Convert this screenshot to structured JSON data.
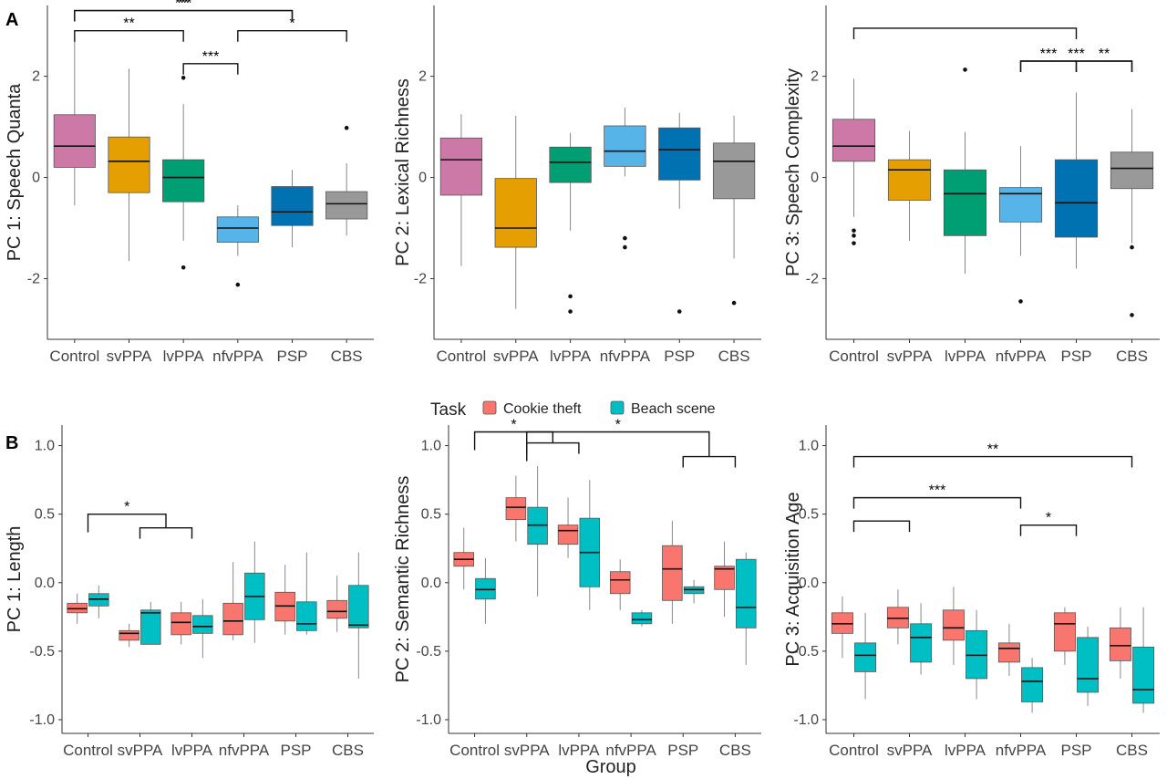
{
  "panel_labels": [
    "A",
    "B"
  ],
  "x_axis_title": "Group",
  "legend": {
    "title": "Task",
    "items": [
      {
        "label": "Cookie theft",
        "color": "#F8766D"
      },
      {
        "label": "Beach scene",
        "color": "#00BFC4"
      }
    ]
  },
  "chart_data": [
    {
      "type": "box",
      "ylabel": "PC 1: Speech Quanta",
      "categories": [
        "Control",
        "svPPA",
        "lvPPA",
        "nfvPPA",
        "PSP",
        "CBS"
      ],
      "ylim": [
        -3.2,
        3.4
      ],
      "yticks": [
        -2,
        0,
        2
      ],
      "colors": [
        "#CC79A7",
        "#E69F00",
        "#009E73",
        "#56B4E9",
        "#0072B2",
        "#999999"
      ],
      "boxes": [
        {
          "q1": 0.2,
          "median": 0.62,
          "q3": 1.24,
          "wlo": -0.55,
          "whi": 2.7,
          "outliers": []
        },
        {
          "q1": -0.3,
          "median": 0.32,
          "q3": 0.8,
          "wlo": -1.65,
          "whi": 2.15,
          "outliers": []
        },
        {
          "q1": -0.48,
          "median": 0.0,
          "q3": 0.35,
          "wlo": -1.25,
          "whi": 1.45,
          "outliers": [
            1.97,
            -1.78
          ]
        },
        {
          "q1": -1.28,
          "median": -1.0,
          "q3": -0.78,
          "wlo": -1.55,
          "whi": -0.55,
          "outliers": [
            -2.12
          ]
        },
        {
          "q1": -0.95,
          "median": -0.68,
          "q3": -0.18,
          "wlo": -1.38,
          "whi": 0.15,
          "outliers": []
        },
        {
          "q1": -0.82,
          "median": -0.52,
          "q3": -0.28,
          "wlo": -1.15,
          "whi": 0.28,
          "outliers": [
            0.98
          ]
        }
      ],
      "brackets": [
        {
          "from": 0,
          "to": 2,
          "y": 2.9,
          "label": "**"
        },
        {
          "from": 2,
          "to": 3,
          "y": 2.25,
          "label": "***"
        },
        {
          "from": 3,
          "to": 5,
          "y": 2.9,
          "label": "*"
        },
        {
          "from": 0,
          "to": 4,
          "y": 3.3,
          "label": "***",
          "mid_drop": 3.05
        },
        {
          "from": 0,
          "to": 4,
          "y": 3.3,
          "label": "**"
        }
      ]
    },
    {
      "type": "box",
      "ylabel": "PC 2: Lexical Richness",
      "categories": [
        "Control",
        "svPPA",
        "lvPPA",
        "nfvPPA",
        "PSP",
        "CBS"
      ],
      "ylim": [
        -3.2,
        3.4
      ],
      "yticks": [
        -2,
        0,
        2
      ],
      "colors": [
        "#CC79A7",
        "#E69F00",
        "#009E73",
        "#56B4E9",
        "#0072B2",
        "#999999"
      ],
      "boxes": [
        {
          "q1": -0.35,
          "median": 0.35,
          "q3": 0.78,
          "wlo": -1.75,
          "whi": 1.25,
          "outliers": []
        },
        {
          "q1": -1.38,
          "median": -1.0,
          "q3": -0.02,
          "wlo": -2.6,
          "whi": 1.22,
          "outliers": []
        },
        {
          "q1": -0.1,
          "median": 0.3,
          "q3": 0.6,
          "wlo": -1.05,
          "whi": 0.88,
          "outliers": [
            -2.35,
            -2.65
          ]
        },
        {
          "q1": 0.22,
          "median": 0.52,
          "q3": 1.02,
          "wlo": 0.02,
          "whi": 1.38,
          "outliers": [
            -1.2,
            -1.38
          ]
        },
        {
          "q1": -0.05,
          "median": 0.55,
          "q3": 0.98,
          "wlo": -0.62,
          "whi": 1.28,
          "outliers": [
            -2.65
          ]
        },
        {
          "q1": -0.42,
          "median": 0.32,
          "q3": 0.68,
          "wlo": -1.6,
          "whi": 1.22,
          "outliers": [
            -2.48
          ]
        }
      ],
      "brackets": []
    },
    {
      "type": "box",
      "ylabel": "PC 3: Speech Complexity",
      "categories": [
        "Control",
        "svPPA",
        "lvPPA",
        "nfvPPA",
        "PSP",
        "CBS"
      ],
      "ylim": [
        -3.2,
        3.4
      ],
      "yticks": [
        -2,
        0,
        2
      ],
      "colors": [
        "#CC79A7",
        "#E69F00",
        "#009E73",
        "#56B4E9",
        "#0072B2",
        "#999999"
      ],
      "boxes": [
        {
          "q1": 0.32,
          "median": 0.62,
          "q3": 1.15,
          "wlo": -0.78,
          "whi": 1.95,
          "outliers": [
            -1.05,
            -1.15,
            -1.3
          ]
        },
        {
          "q1": -0.45,
          "median": 0.15,
          "q3": 0.35,
          "wlo": -1.25,
          "whi": 0.92,
          "outliers": []
        },
        {
          "q1": -1.15,
          "median": -0.32,
          "q3": 0.15,
          "wlo": -1.9,
          "whi": 0.9,
          "outliers": [
            2.13
          ]
        },
        {
          "q1": -0.88,
          "median": -0.32,
          "q3": -0.2,
          "wlo": -1.55,
          "whi": 0.62,
          "outliers": [
            -2.45
          ]
        },
        {
          "q1": -1.18,
          "median": -0.5,
          "q3": 0.35,
          "wlo": -1.8,
          "whi": 1.68,
          "outliers": []
        },
        {
          "q1": -0.22,
          "median": 0.18,
          "q3": 0.5,
          "wlo": -1.3,
          "whi": 1.35,
          "outliers": [
            -1.38,
            -2.72
          ]
        }
      ],
      "brackets": [
        {
          "from": 0,
          "to": 4,
          "y": 2.95,
          "label": ""
        },
        {
          "from": 3,
          "to": 4,
          "y": 2.3,
          "label": "***"
        },
        {
          "from": 4,
          "to": 5,
          "y": 2.3,
          "label": "**"
        },
        {
          "from": 3,
          "to": 5,
          "y": 2.3,
          "label": "***",
          "center_only": true
        }
      ]
    },
    {
      "type": "box",
      "ylabel": "PC 1: Length",
      "categories": [
        "Control",
        "svPPA",
        "lvPPA",
        "nfvPPA",
        "PSP",
        "CBS"
      ],
      "ylim": [
        -1.1,
        1.15
      ],
      "yticks": [
        -1.0,
        -0.5,
        0.0,
        0.5,
        1.0
      ],
      "series": [
        {
          "name": "Cookie theft",
          "boxes": [
            {
              "q1": -0.22,
              "median": -0.19,
              "q3": -0.15,
              "wlo": -0.3,
              "whi": -0.08
            },
            {
              "q1": -0.42,
              "median": -0.37,
              "q3": -0.35,
              "wlo": -0.47,
              "whi": -0.3
            },
            {
              "q1": -0.38,
              "median": -0.29,
              "q3": -0.22,
              "wlo": -0.45,
              "whi": -0.14
            },
            {
              "q1": -0.38,
              "median": -0.28,
              "q3": -0.15,
              "wlo": -0.42,
              "whi": 0.15
            },
            {
              "q1": -0.28,
              "median": -0.17,
              "q3": -0.07,
              "wlo": -0.38,
              "whi": 0.13
            },
            {
              "q1": -0.26,
              "median": -0.21,
              "q3": -0.13,
              "wlo": -0.36,
              "whi": 0.05
            }
          ]
        },
        {
          "name": "Beach scene",
          "boxes": [
            {
              "q1": -0.17,
              "median": -0.12,
              "q3": -0.08,
              "wlo": -0.26,
              "whi": -0.02
            },
            {
              "q1": -0.45,
              "median": -0.22,
              "q3": -0.2,
              "wlo": -0.45,
              "whi": -0.14
            },
            {
              "q1": -0.37,
              "median": -0.32,
              "q3": -0.24,
              "wlo": -0.55,
              "whi": -0.12
            },
            {
              "q1": -0.27,
              "median": -0.1,
              "q3": 0.07,
              "wlo": -0.44,
              "whi": 0.3
            },
            {
              "q1": -0.35,
              "median": -0.3,
              "q3": -0.14,
              "wlo": -0.38,
              "whi": 0.22
            },
            {
              "q1": -0.33,
              "median": -0.31,
              "q3": -0.02,
              "wlo": -0.7,
              "whi": 0.22
            }
          ]
        }
      ],
      "brackets": [
        {
          "from": 0,
          "to": 1,
          "y": 0.5,
          "label": "*",
          "right_to": 2,
          "right_y": 0.4
        }
      ]
    },
    {
      "type": "box",
      "ylabel": "PC 2: Semantic Richness",
      "categories": [
        "Control",
        "svPPA",
        "lvPPA",
        "nfvPPA",
        "PSP",
        "CBS"
      ],
      "ylim": [
        -1.1,
        1.15
      ],
      "yticks": [
        -1.0,
        -0.5,
        0.0,
        0.5,
        1.0
      ],
      "series": [
        {
          "name": "Cookie theft",
          "boxes": [
            {
              "q1": 0.12,
              "median": 0.17,
              "q3": 0.22,
              "wlo": -0.05,
              "whi": 0.4
            },
            {
              "q1": 0.46,
              "median": 0.55,
              "q3": 0.62,
              "wlo": 0.3,
              "whi": 0.78
            },
            {
              "q1": 0.28,
              "median": 0.38,
              "q3": 0.42,
              "wlo": 0.18,
              "whi": 0.62
            },
            {
              "q1": -0.08,
              "median": 0.02,
              "q3": 0.08,
              "wlo": -0.2,
              "whi": 0.17
            },
            {
              "q1": -0.13,
              "median": 0.1,
              "q3": 0.27,
              "wlo": -0.3,
              "whi": 0.45
            },
            {
              "q1": -0.05,
              "median": 0.1,
              "q3": 0.12,
              "wlo": -0.25,
              "whi": 0.3
            }
          ]
        },
        {
          "name": "Beach scene",
          "boxes": [
            {
              "q1": -0.12,
              "median": -0.05,
              "q3": 0.03,
              "wlo": -0.3,
              "whi": 0.18
            },
            {
              "q1": 0.28,
              "median": 0.42,
              "q3": 0.55,
              "wlo": -0.1,
              "whi": 0.85
            },
            {
              "q1": -0.03,
              "median": 0.22,
              "q3": 0.47,
              "wlo": -0.2,
              "whi": 0.75
            },
            {
              "q1": -0.3,
              "median": -0.27,
              "q3": -0.22,
              "wlo": -0.32,
              "whi": -0.2
            },
            {
              "q1": -0.08,
              "median": -0.05,
              "q3": -0.03,
              "wlo": -0.15,
              "whi": 0.02
            },
            {
              "q1": -0.33,
              "median": -0.18,
              "q3": 0.17,
              "wlo": -0.6,
              "whi": 0.22
            }
          ]
        }
      ],
      "brackets": [
        {
          "from": 0,
          "to": 1,
          "y": 1.1,
          "label": "*",
          "right_to": 2,
          "right_y": 1.02
        },
        {
          "from": 1,
          "to": 4,
          "y": 1.1,
          "label": "*",
          "right_to": 5,
          "right_y": 0.92,
          "left_y": 1.02
        }
      ]
    },
    {
      "type": "box",
      "ylabel": "PC 3: Acquisition Age",
      "categories": [
        "Control",
        "svPPA",
        "lvPPA",
        "nfvPPA",
        "PSP",
        "CBS"
      ],
      "ylim": [
        -1.1,
        1.15
      ],
      "yticks": [
        -1.0,
        -0.5,
        0.0,
        0.5,
        1.0
      ],
      "series": [
        {
          "name": "Cookie theft",
          "boxes": [
            {
              "q1": -0.37,
              "median": -0.3,
              "q3": -0.22,
              "wlo": -0.55,
              "whi": -0.1
            },
            {
              "q1": -0.33,
              "median": -0.26,
              "q3": -0.18,
              "wlo": -0.45,
              "whi": -0.05
            },
            {
              "q1": -0.42,
              "median": -0.33,
              "q3": -0.2,
              "wlo": -0.6,
              "whi": -0.03
            },
            {
              "q1": -0.58,
              "median": -0.48,
              "q3": -0.44,
              "wlo": -0.68,
              "whi": -0.3
            },
            {
              "q1": -0.5,
              "median": -0.3,
              "q3": -0.22,
              "wlo": -0.6,
              "whi": -0.18
            },
            {
              "q1": -0.57,
              "median": -0.46,
              "q3": -0.33,
              "wlo": -0.7,
              "whi": -0.18
            }
          ]
        },
        {
          "name": "Beach scene",
          "boxes": [
            {
              "q1": -0.65,
              "median": -0.53,
              "q3": -0.44,
              "wlo": -0.85,
              "whi": -0.22
            },
            {
              "q1": -0.58,
              "median": -0.4,
              "q3": -0.3,
              "wlo": -0.67,
              "whi": -0.15
            },
            {
              "q1": -0.7,
              "median": -0.53,
              "q3": -0.35,
              "wlo": -0.85,
              "whi": -0.2
            },
            {
              "q1": -0.87,
              "median": -0.72,
              "q3": -0.62,
              "wlo": -0.95,
              "whi": -0.55
            },
            {
              "q1": -0.8,
              "median": -0.7,
              "q3": -0.4,
              "wlo": -0.9,
              "whi": -0.32
            },
            {
              "q1": -0.88,
              "median": -0.78,
              "q3": -0.47,
              "wlo": -0.95,
              "whi": -0.18
            }
          ]
        }
      ],
      "brackets": [
        {
          "from": 0,
          "to": 1,
          "y": 0.45,
          "label": "",
          "type": "base"
        },
        {
          "from": 0,
          "to": 3,
          "y": 0.62,
          "label": "***",
          "mid_from": 0.5
        },
        {
          "from": 0,
          "to": 5,
          "y": 0.92,
          "label": "**",
          "mid_from": 0.5
        },
        {
          "from": 3,
          "to": 4,
          "y": 0.42,
          "label": "*"
        }
      ]
    }
  ]
}
